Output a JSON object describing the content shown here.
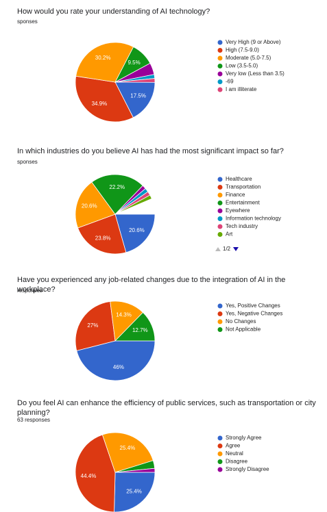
{
  "chart_data": [
    {
      "type": "pie",
      "title": "How would you rate your understanding of AI technology?",
      "subtitle": "sponses",
      "categories": [
        "Very High (9 or Above)",
        "High (7.5-9.0)",
        "Moderate (5.0-7.5)",
        "Low (3.5-5.0)",
        "Very low (Less than 3.5)",
        "-69",
        "I am illiterate"
      ],
      "values": [
        17.5,
        34.9,
        30.2,
        9.5,
        4.8,
        1.6,
        1.6
      ],
      "value_labels": [
        "17.5%",
        "34.9%",
        "30.2%",
        "9.5%",
        null,
        null,
        null
      ],
      "colors": [
        "#3366cc",
        "#dc3912",
        "#ff9900",
        "#109618",
        "#990099",
        "#0099c6",
        "#dd4477"
      ]
    },
    {
      "type": "pie",
      "title": "In which industries do you believe AI has had the most significant impact so far?",
      "subtitle": "sponses",
      "categories": [
        "Healthcare",
        "Transportation",
        "Finance",
        "Entertainment",
        "Eyewhere",
        "Information technology",
        "Tech industry",
        "Art"
      ],
      "values": [
        20.6,
        23.8,
        20.6,
        22.2,
        1.6,
        1.6,
        1.6,
        1.6
      ],
      "value_labels": [
        "20.6%",
        "23.8%",
        "20.6%",
        "22.2%",
        null,
        null,
        null,
        null
      ],
      "colors": [
        "#3366cc",
        "#dc3912",
        "#ff9900",
        "#109618",
        "#990099",
        "#0099c6",
        "#dd4477",
        "#66aa00"
      ],
      "legend_page": "1/2"
    },
    {
      "type": "pie",
      "title": "Have you experienced any job-related changes due to the integration of AI in the workplace?",
      "subtitle": "responses",
      "categories": [
        "Yes, Positive Changes",
        "Yes, Negative Changes",
        "No Changes",
        "Not Applicable"
      ],
      "values": [
        46,
        27,
        14.3,
        12.7
      ],
      "value_labels": [
        "46%",
        "27%",
        "14.3%",
        "12.7%"
      ],
      "colors": [
        "#3366cc",
        "#dc3912",
        "#ff9900",
        "#109618"
      ]
    },
    {
      "type": "pie",
      "title": "Do you feel AI can enhance the efficiency of public services, such as transportation or city planning?",
      "subtitle": "63 responses",
      "categories": [
        "Strongly Agree",
        "Agree",
        "Neutral",
        "Disagree",
        "Strongly Disagree"
      ],
      "values": [
        25.4,
        44.4,
        25.4,
        3.2,
        1.6
      ],
      "value_labels": [
        "25.4%",
        "44.4%",
        "25.4%",
        null,
        null
      ],
      "colors": [
        "#3366cc",
        "#dc3912",
        "#ff9900",
        "#109618",
        "#990099"
      ]
    }
  ]
}
